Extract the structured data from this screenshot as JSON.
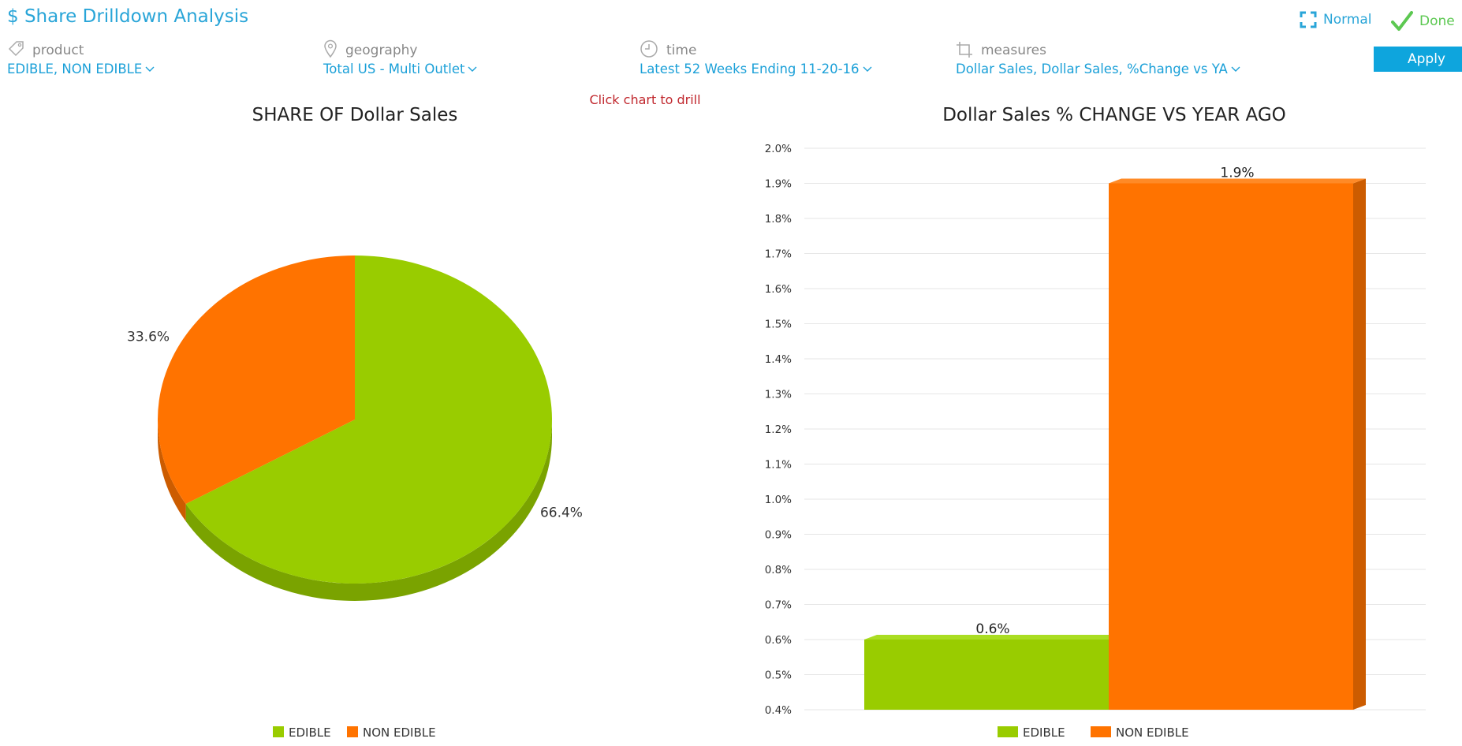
{
  "header": {
    "title": "$ Share Drilldown Analysis",
    "normal_label": "Normal",
    "done_label": "Done"
  },
  "filters": [
    {
      "key": "product",
      "label": "product",
      "value": "EDIBLE, NON EDIBLE",
      "icon": "tag-icon"
    },
    {
      "key": "geography",
      "label": "geography",
      "value": "Total US - Multi Outlet",
      "icon": "location-pin-icon"
    },
    {
      "key": "time",
      "label": "time",
      "value": "Latest 52 Weeks Ending 11-20-16",
      "icon": "clock-icon"
    },
    {
      "key": "measures",
      "label": "measures",
      "value": "Dollar Sales, Dollar Sales, %Change vs YA",
      "icon": "crop-icon"
    }
  ],
  "apply_label": "Apply",
  "hint": "Click chart to drill",
  "colors": {
    "accent": "#29a5d8",
    "edible": "#99cc00",
    "edible_dark": "#7aa300",
    "non_edible": "#ff7300",
    "non_edible_dark": "#cc5c00",
    "hint": "#c0272d",
    "done": "#5cc851"
  },
  "chart_data": [
    {
      "type": "pie",
      "title": "SHARE OF Dollar Sales",
      "categories": [
        "EDIBLE",
        "NON EDIBLE"
      ],
      "values": [
        66.4,
        33.6
      ],
      "value_labels": [
        "66.4%",
        "33.6%"
      ],
      "legend": [
        "EDIBLE",
        "NON EDIBLE"
      ],
      "legend_position": "bottom"
    },
    {
      "type": "bar",
      "title": "Dollar Sales % CHANGE VS YEAR AGO",
      "categories": [
        "EDIBLE",
        "NON EDIBLE"
      ],
      "values": [
        0.6,
        1.9
      ],
      "value_labels": [
        "0.6%",
        "1.9%"
      ],
      "ylim": [
        0.4,
        2.0
      ],
      "yticks": [
        "0.4%",
        "0.5%",
        "0.6%",
        "0.7%",
        "0.8%",
        "0.9%",
        "1.0%",
        "1.1%",
        "1.2%",
        "1.3%",
        "1.4%",
        "1.5%",
        "1.6%",
        "1.7%",
        "1.8%",
        "1.9%",
        "2.0%"
      ],
      "grid": true,
      "legend": [
        "EDIBLE",
        "NON EDIBLE"
      ],
      "legend_position": "bottom"
    }
  ]
}
